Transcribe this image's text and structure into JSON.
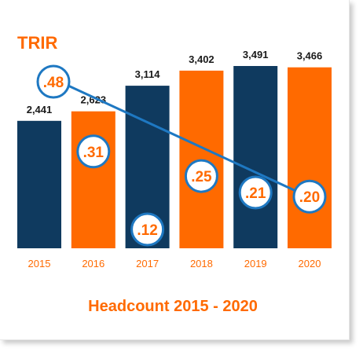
{
  "chart_data": {
    "type": "bar",
    "title": "Headcount 2015 - 2020",
    "categories": [
      "2015",
      "2016",
      "2017",
      "2018",
      "2019",
      "2020"
    ],
    "bar_series": {
      "name": "Headcount",
      "values": [
        2441,
        2623,
        3114,
        3402,
        3491,
        3466
      ],
      "labels": [
        "2,441",
        "2,623",
        "3,114",
        "3,402",
        "3,491",
        "3,466"
      ]
    },
    "line_series": {
      "name": "TRIR",
      "values": [
        0.48,
        0.31,
        0.12,
        0.25,
        0.21,
        0.2
      ],
      "labels": [
        ".48",
        ".31",
        ".12",
        ".25",
        ".21",
        ".20"
      ]
    },
    "line_points_shown_on_trend": [
      {
        "category": "2015",
        "value": 0.48
      },
      {
        "category": "2020",
        "value": 0.2
      }
    ],
    "colors": {
      "navy": "#0f3a5f",
      "orange": "#ff6a00",
      "line": "#1e78c2",
      "circle_fill": "#ffffff",
      "label_dark": "#1a1a1a"
    },
    "bar_colors": [
      "navy",
      "orange",
      "navy",
      "orange",
      "navy",
      "orange"
    ],
    "y_range": [
      0,
      3491
    ],
    "grid": false,
    "legend": "none"
  }
}
